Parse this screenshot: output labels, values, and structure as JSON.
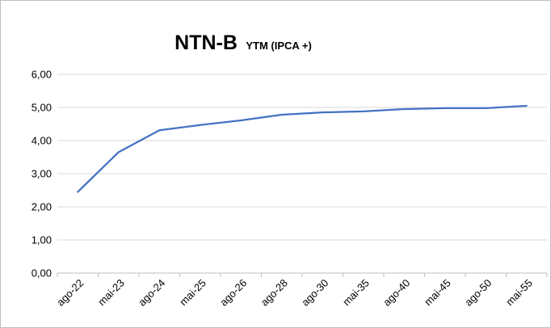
{
  "chart_data": {
    "type": "line",
    "title": "NTN-B",
    "subtitle": "YTM (IPCA +)",
    "categories": [
      "ago-22",
      "mai-23",
      "ago-24",
      "mai-25",
      "ago-26",
      "ago-28",
      "ago-30",
      "mai-35",
      "ago-40",
      "mai-45",
      "ago-50",
      "mai-55"
    ],
    "series": [
      {
        "values": [
          2.45,
          3.65,
          4.31,
          4.47,
          4.61,
          4.78,
          4.85,
          4.88,
          4.95,
          4.98,
          4.98,
          5.05
        ],
        "color": "#4472c4"
      }
    ],
    "yticks": [
      "0,00",
      "1,00",
      "2,00",
      "3,00",
      "4,00",
      "5,00",
      "6,00"
    ],
    "ylim": [
      0,
      6
    ],
    "grid": true,
    "legend": "none"
  }
}
